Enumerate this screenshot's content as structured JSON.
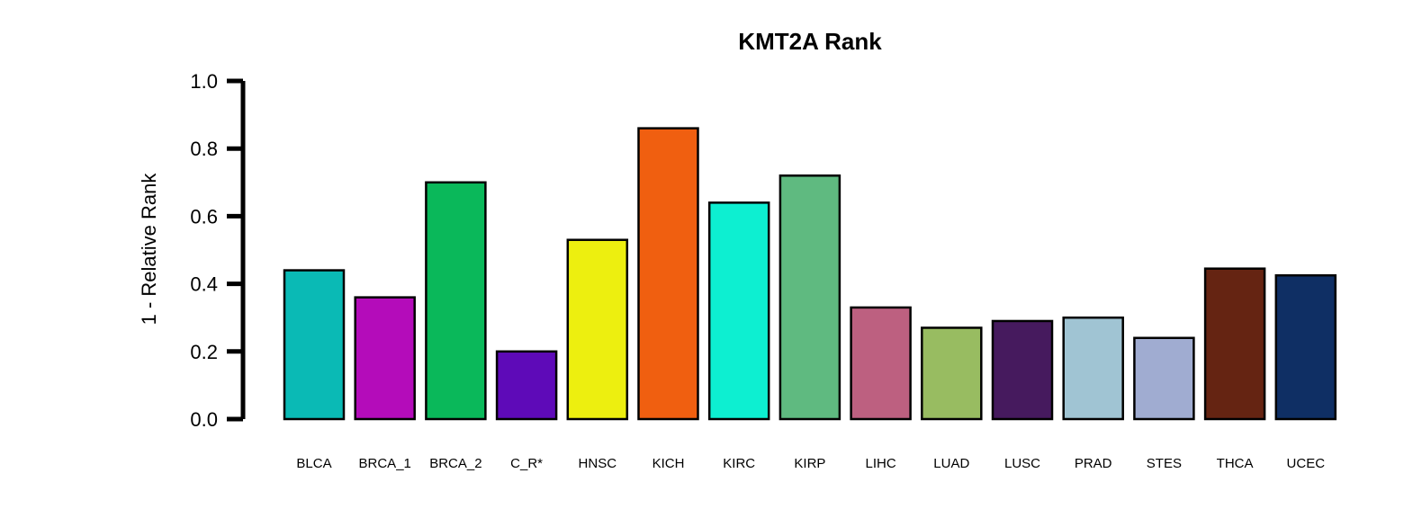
{
  "chart_data": {
    "type": "bar",
    "title": "KMT2A Rank",
    "xlabel": "",
    "ylabel": "1 - Relative Rank",
    "ylim": [
      0,
      1
    ],
    "yticks": [
      "0.0",
      "0.2",
      "0.4",
      "0.6",
      "0.8",
      "1.0"
    ],
    "yticks_values": [
      0,
      0.2,
      0.4,
      0.6,
      0.8,
      1.0
    ],
    "grid": false,
    "legend": "none",
    "categories": [
      "BLCA",
      "BRCA_1",
      "BRCA_2",
      "C_R*",
      "HNSC",
      "KICH",
      "KIRC",
      "KIRP",
      "LIHC",
      "LUAD",
      "LUSC",
      "PRAD",
      "STES",
      "THCA",
      "UCEC"
    ],
    "values": [
      0.44,
      0.36,
      0.7,
      0.2,
      0.53,
      0.86,
      0.64,
      0.72,
      0.33,
      0.27,
      0.29,
      0.3,
      0.24,
      0.445,
      0.425
    ],
    "colors": [
      "#0ABAB5",
      "#B40CBA",
      "#0AB85A",
      "#5E0AB8",
      "#EDEF0F",
      "#F05F10",
      "#0DEFD1",
      "#5FBA80",
      "#BD6080",
      "#98BC61",
      "#461A5E",
      "#A0C4D3",
      "#A0ACD1",
      "#652412",
      "#0F2F64"
    ],
    "bar_edge_color": "#000000"
  }
}
